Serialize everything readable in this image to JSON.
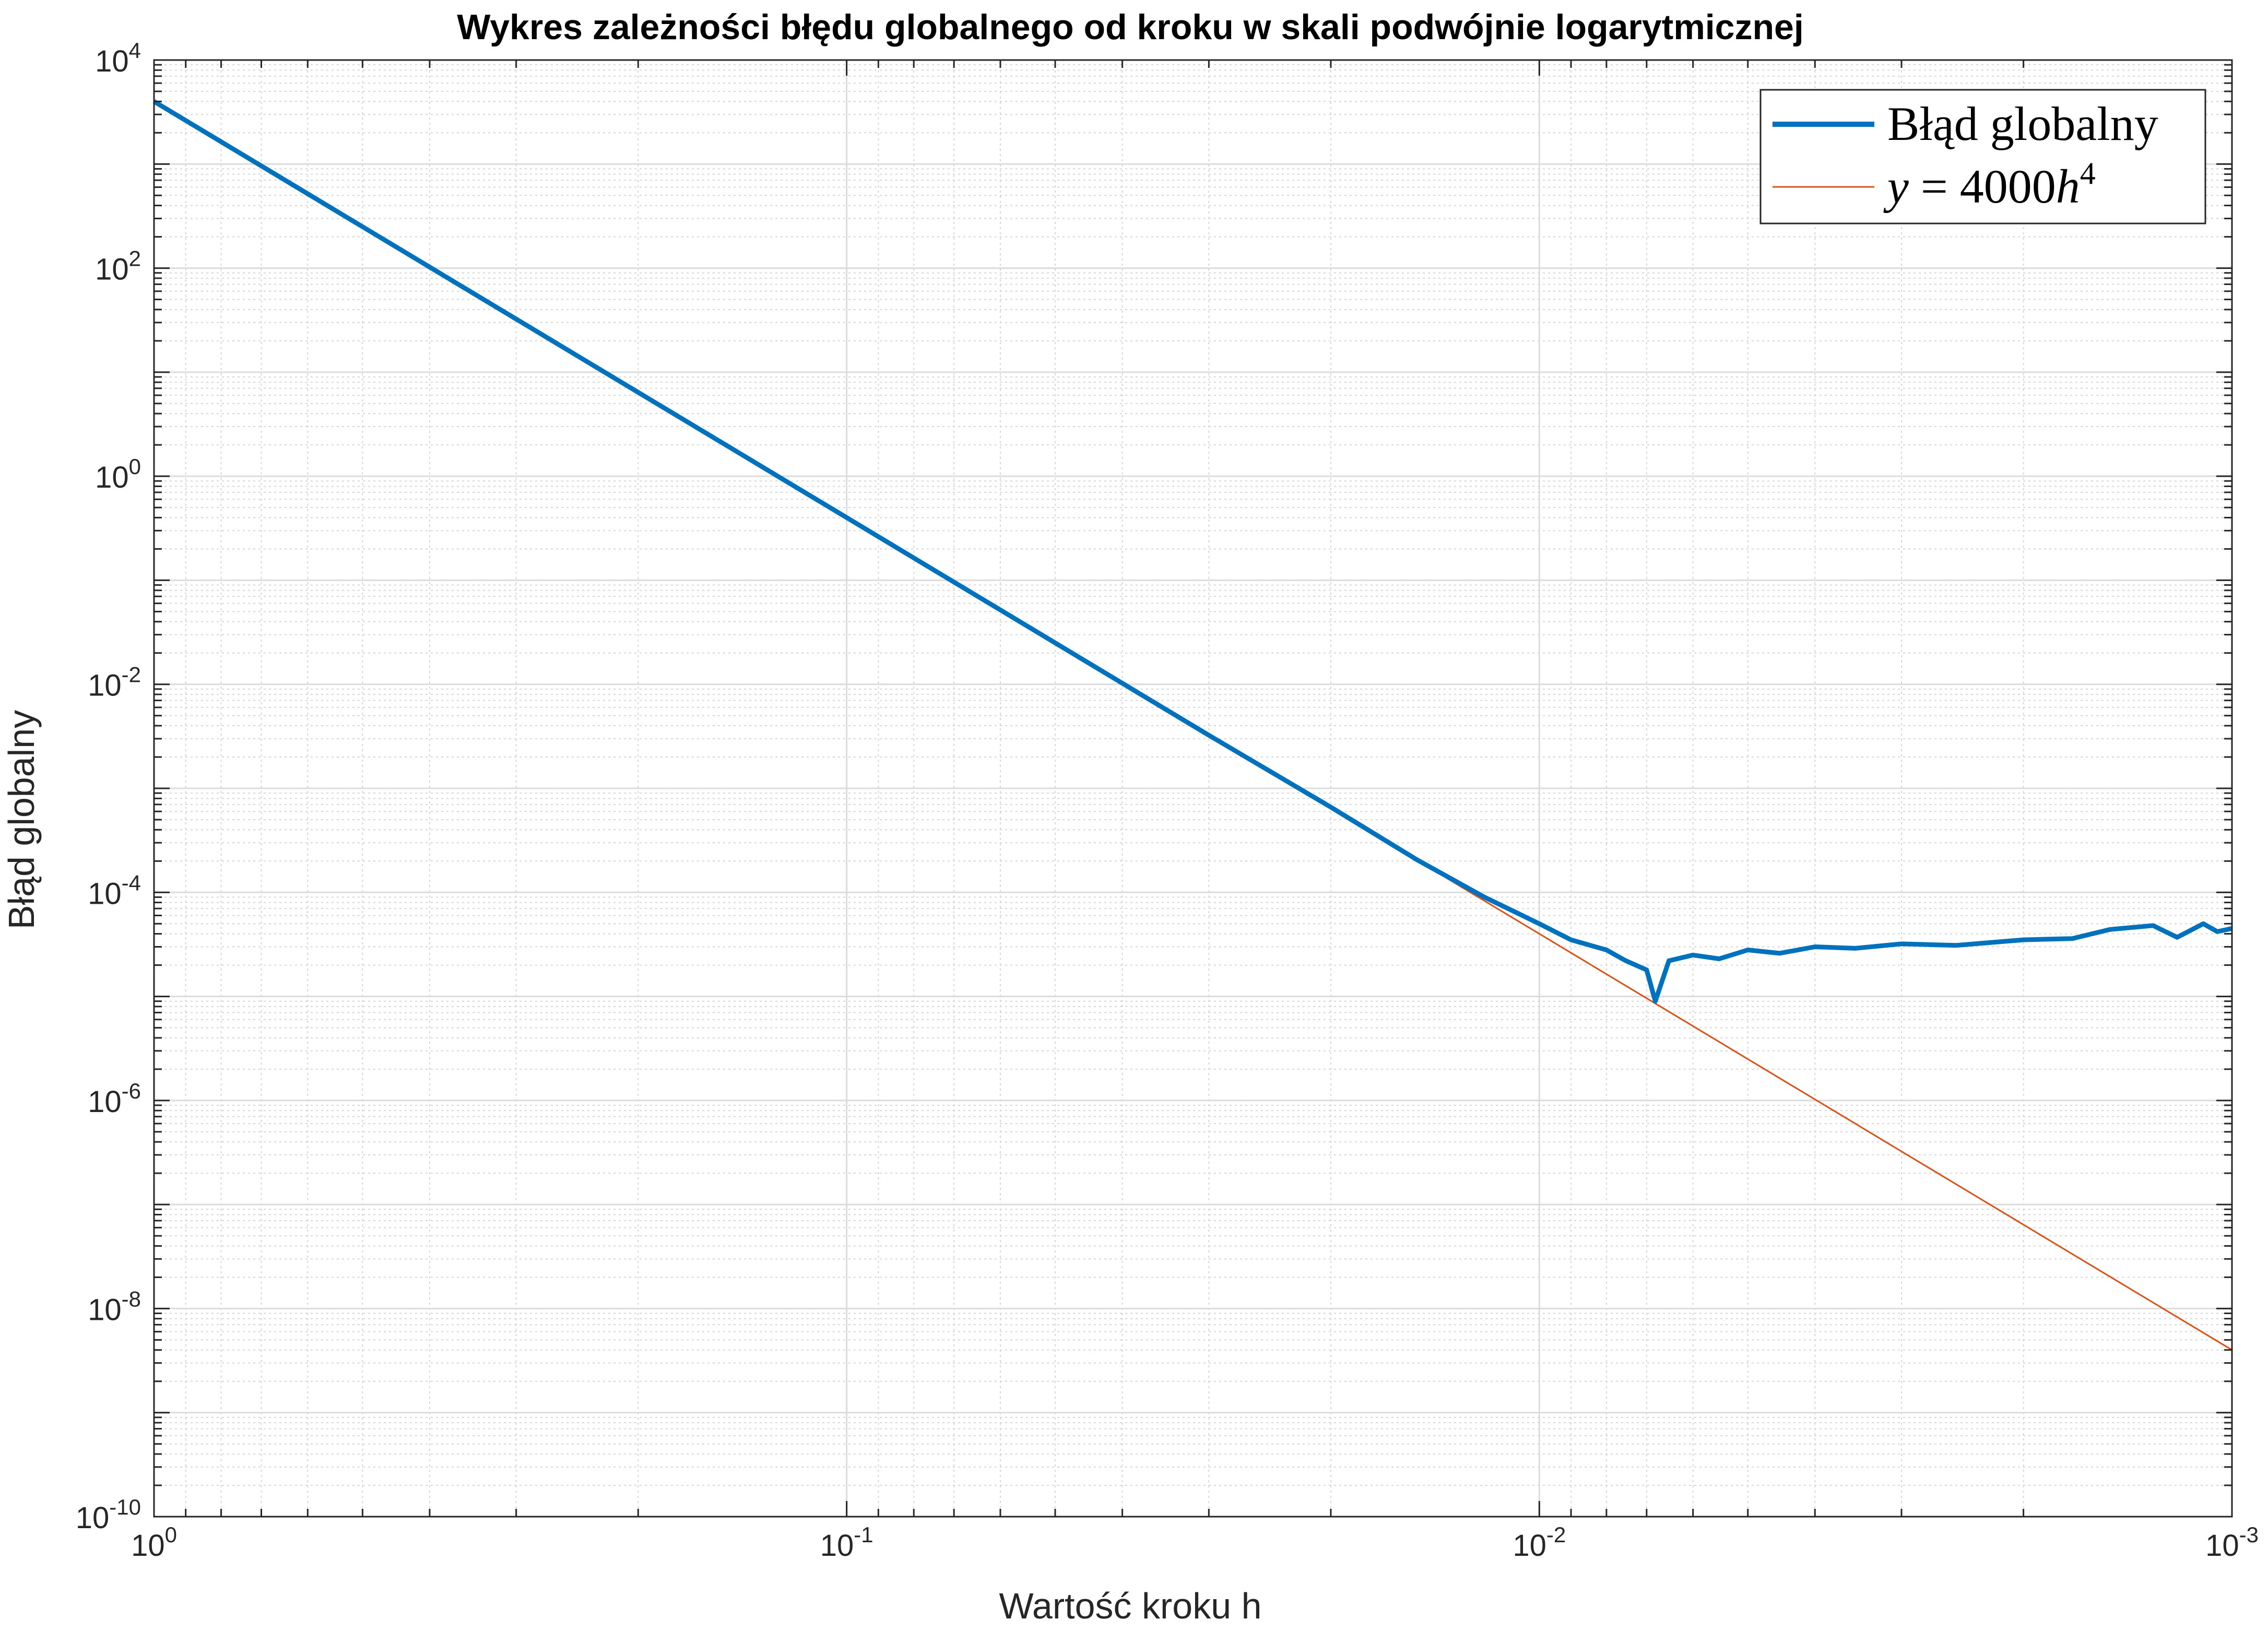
{
  "chart_data": {
    "type": "line",
    "title": "Wykres zależności błędu globalnego od kroku w skali podwójnie logarytmicznej",
    "xlabel": "Wartość kroku h",
    "ylabel": "Błąd globalny",
    "xscale": "log",
    "yscale": "log",
    "x_direction": "reversed",
    "xlim": [
      1,
      0.001
    ],
    "ylim": [
      1e-10,
      10000
    ],
    "grid": true,
    "minor_grid": true,
    "legend_position": "top-right",
    "x_ticks": [
      {
        "value": 1,
        "base": "10",
        "exp": "0"
      },
      {
        "value": 0.1,
        "base": "10",
        "exp": "-1"
      },
      {
        "value": 0.01,
        "base": "10",
        "exp": "-2"
      },
      {
        "value": 0.001,
        "base": "10",
        "exp": "-3"
      }
    ],
    "y_ticks": [
      {
        "value": 1e-10,
        "base": "10",
        "exp": "-10"
      },
      {
        "value": 1e-08,
        "base": "10",
        "exp": "-8"
      },
      {
        "value": 1e-06,
        "base": "10",
        "exp": "-6"
      },
      {
        "value": 0.0001,
        "base": "10",
        "exp": "-4"
      },
      {
        "value": 0.01,
        "base": "10",
        "exp": "-2"
      },
      {
        "value": 1,
        "base": "10",
        "exp": "0"
      },
      {
        "value": 100,
        "base": "10",
        "exp": "2"
      },
      {
        "value": 10000,
        "base": "10",
        "exp": "4"
      }
    ],
    "series": [
      {
        "name": "Błąd globalny",
        "color": "#0072BD",
        "x": [
          1,
          0.5,
          0.2,
          0.1,
          0.05,
          0.03,
          0.02,
          0.015,
          0.012,
          0.01,
          0.009,
          0.008,
          0.0075,
          0.007,
          0.0068,
          0.0065,
          0.006,
          0.0055,
          0.005,
          0.0045,
          0.004,
          0.0035,
          0.003,
          0.0025,
          0.002,
          0.0017,
          0.0015,
          0.0013,
          0.0012,
          0.0011,
          0.00105,
          0.001
        ],
        "y": [
          4000,
          250,
          6.4,
          0.4,
          0.025,
          0.00324,
          0.00066,
          0.000205,
          9e-05,
          5e-05,
          3.5e-05,
          2.8e-05,
          2.2e-05,
          1.8e-05,
          9e-06,
          2.2e-05,
          2.5e-05,
          2.3e-05,
          2.8e-05,
          2.6e-05,
          3e-05,
          2.9e-05,
          3.2e-05,
          3.1e-05,
          3.5e-05,
          3.6e-05,
          4.4e-05,
          4.8e-05,
          3.7e-05,
          5e-05,
          4.2e-05,
          4.5e-05
        ]
      },
      {
        "name": "y = 4000h^4",
        "color": "#D95319",
        "x": [
          1,
          0.001
        ],
        "y": [
          4000,
          4e-09
        ]
      }
    ]
  }
}
